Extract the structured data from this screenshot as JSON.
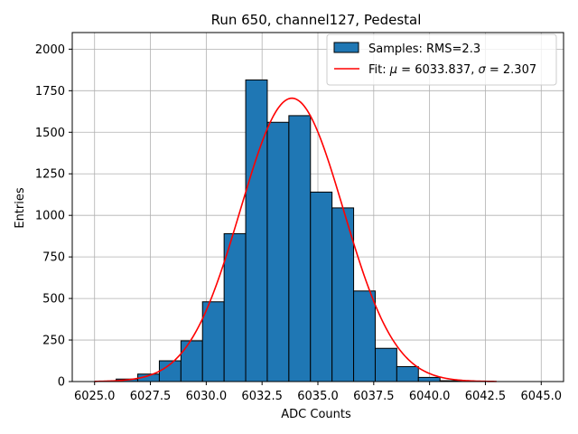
{
  "chart_data": {
    "type": "bar",
    "title": "Run 650, channel127, Pedestal",
    "xlabel": "ADC Counts",
    "ylabel": "Entries",
    "xlim": [
      6024.0,
      6046.0
    ],
    "ylim": [
      0,
      2100
    ],
    "grid": true,
    "legend_position": "top-right",
    "colors": {
      "bar": "#1f77b4",
      "edge": "#000000",
      "fit": "#ff0000",
      "grid": "#b0b0b0"
    },
    "x_ticks": [
      {
        "value": 6025.0,
        "label": "6025.0"
      },
      {
        "value": 6027.5,
        "label": "6027.5"
      },
      {
        "value": 6030.0,
        "label": "6030.0"
      },
      {
        "value": 6032.5,
        "label": "6032.5"
      },
      {
        "value": 6035.0,
        "label": "6035.0"
      },
      {
        "value": 6037.5,
        "label": "6037.5"
      },
      {
        "value": 6040.0,
        "label": "6040.0"
      },
      {
        "value": 6042.5,
        "label": "6042.5"
      },
      {
        "value": 6045.0,
        "label": "6045.0"
      }
    ],
    "y_ticks": [
      {
        "value": 0,
        "label": "0"
      },
      {
        "value": 250,
        "label": "250"
      },
      {
        "value": 500,
        "label": "500"
      },
      {
        "value": 750,
        "label": "750"
      },
      {
        "value": 1000,
        "label": "1000"
      },
      {
        "value": 1250,
        "label": "1250"
      },
      {
        "value": 1500,
        "label": "1500"
      },
      {
        "value": 1750,
        "label": "1750"
      },
      {
        "value": 2000,
        "label": "2000"
      }
    ],
    "bins": [
      {
        "lo": 6025.0,
        "hi": 6025.967,
        "count": 0
      },
      {
        "lo": 6025.967,
        "hi": 6026.933,
        "count": 15
      },
      {
        "lo": 6026.933,
        "hi": 6027.9,
        "count": 45
      },
      {
        "lo": 6027.9,
        "hi": 6028.867,
        "count": 125
      },
      {
        "lo": 6028.867,
        "hi": 6029.833,
        "count": 245
      },
      {
        "lo": 6029.833,
        "hi": 6030.8,
        "count": 480
      },
      {
        "lo": 6030.8,
        "hi": 6031.767,
        "count": 890
      },
      {
        "lo": 6031.767,
        "hi": 6032.733,
        "count": 1815
      },
      {
        "lo": 6032.733,
        "hi": 6033.7,
        "count": 1560
      },
      {
        "lo": 6033.7,
        "hi": 6034.667,
        "count": 1600
      },
      {
        "lo": 6034.667,
        "hi": 6035.633,
        "count": 1140
      },
      {
        "lo": 6035.633,
        "hi": 6036.6,
        "count": 1045
      },
      {
        "lo": 6036.6,
        "hi": 6037.567,
        "count": 545
      },
      {
        "lo": 6037.567,
        "hi": 6038.533,
        "count": 200
      },
      {
        "lo": 6038.533,
        "hi": 6039.5,
        "count": 90
      },
      {
        "lo": 6039.5,
        "hi": 6040.467,
        "count": 25
      },
      {
        "lo": 6040.467,
        "hi": 6041.433,
        "count": 5
      }
    ],
    "fit": {
      "mu": 6033.837,
      "sigma": 2.307,
      "amplitude": 1705,
      "x_range": [
        6025.0,
        6043.0
      ]
    },
    "legend": {
      "samples": "Samples: RMS=2.3",
      "fit_prefix": "Fit: ",
      "mu_symbol": "μ",
      "mu_text": " = 6033.837, ",
      "sigma_symbol": "σ",
      "sigma_text": " = 2.307"
    }
  }
}
